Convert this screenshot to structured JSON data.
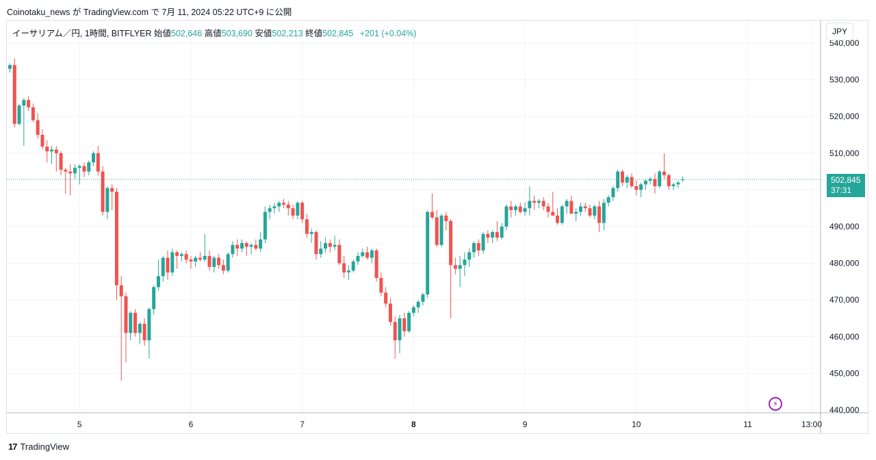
{
  "caption": "Coinotaku_news が TradingView.com で 7月 11, 2024 05:22 UTC+9 に公開",
  "legend": {
    "symbol": "イーサリアム／円, 1時間, BITFLYER",
    "open_label": "始値",
    "open": "502,646",
    "high_label": "高値",
    "high": "503,690",
    "low_label": "安値",
    "low": "502,213",
    "close_label": "終値",
    "close": "502,845",
    "change": "+201 (+0.04%)"
  },
  "currency_button": "JPY",
  "last_price": {
    "price": "502,845",
    "countdown": "37:31"
  },
  "footer": {
    "logo_mark": "17",
    "logo_text": "TradingView"
  },
  "colors": {
    "up": "#26a69a",
    "down": "#ef5350",
    "grid": "#f0f3fa",
    "axis_text": "#131722",
    "tag": "#26a69a",
    "bolt": "#9c27b0"
  },
  "chart_data": {
    "type": "candlestick",
    "ylim": [
      439000,
      544000
    ],
    "y_ticks": [
      440000,
      450000,
      460000,
      470000,
      480000,
      490000,
      500000,
      510000,
      520000,
      530000,
      540000
    ],
    "y_tick_labels": [
      "440,000",
      "450,000",
      "460,000",
      "470,000",
      "480,000",
      "490,000",
      "500,000",
      "510,000",
      "520,000",
      "530,000",
      "540,000"
    ],
    "x_tick_labels": [
      "5",
      "6",
      "7",
      "8",
      "9",
      "10",
      "11",
      "13:00"
    ],
    "x_tick_bold": [
      "8"
    ],
    "x_start_hour": 9,
    "last_price": 502845,
    "ohlc": [
      [
        533000,
        534500,
        532000,
        534000
      ],
      [
        534000,
        535800,
        517000,
        518000
      ],
      [
        518000,
        523500,
        517500,
        523000
      ],
      [
        523000,
        525000,
        512000,
        524500
      ],
      [
        524500,
        525500,
        521500,
        522500
      ],
      [
        522500,
        523500,
        518500,
        519000
      ],
      [
        519000,
        521000,
        514000,
        515000
      ],
      [
        515000,
        516500,
        511000,
        511800
      ],
      [
        511800,
        513500,
        507500,
        510500
      ],
      [
        510500,
        512000,
        507000,
        511000
      ],
      [
        511000,
        512000,
        505000,
        510000
      ],
      [
        510000,
        510500,
        504000,
        505500
      ],
      [
        505500,
        506000,
        499000,
        505000
      ],
      [
        505000,
        507000,
        498500,
        504500
      ],
      [
        504500,
        507000,
        503000,
        506000
      ],
      [
        506000,
        507000,
        501500,
        506500
      ],
      [
        506500,
        507500,
        503500,
        505000
      ],
      [
        505000,
        508000,
        504000,
        507500
      ],
      [
        507500,
        510500,
        506500,
        510000
      ],
      [
        510000,
        512000,
        504000,
        505000
      ],
      [
        505000,
        506500,
        493000,
        494000
      ],
      [
        494000,
        501000,
        492000,
        500500
      ],
      [
        500500,
        501500,
        494500,
        499500
      ],
      [
        499500,
        500500,
        470000,
        474000
      ],
      [
        474000,
        476500,
        448000,
        471000
      ],
      [
        471000,
        472000,
        453000,
        461000
      ],
      [
        461000,
        467000,
        459000,
        466500
      ],
      [
        466500,
        467500,
        460000,
        461000
      ],
      [
        461000,
        464000,
        458000,
        463500
      ],
      [
        463500,
        465000,
        457500,
        459000
      ],
      [
        459000,
        468000,
        454000,
        467500
      ],
      [
        467500,
        474000,
        466000,
        473500
      ],
      [
        473500,
        481000,
        472500,
        476500
      ],
      [
        476500,
        482000,
        475000,
        481500
      ],
      [
        481500,
        483500,
        475500,
        477500
      ],
      [
        477500,
        484000,
        476500,
        483000
      ],
      [
        483000,
        483500,
        478500,
        482000
      ],
      [
        482000,
        483000,
        480500,
        482500
      ],
      [
        482500,
        483500,
        480000,
        481000
      ],
      [
        481000,
        482000,
        478500,
        480500
      ],
      [
        480500,
        482000,
        479000,
        481500
      ],
      [
        481500,
        483000,
        480500,
        481000
      ],
      [
        481000,
        488000,
        480500,
        482000
      ],
      [
        482000,
        483500,
        478000,
        479000
      ],
      [
        479000,
        482000,
        477500,
        481500
      ],
      [
        481500,
        482500,
        478500,
        479500
      ],
      [
        479500,
        481000,
        477000,
        478000
      ],
      [
        478000,
        483000,
        477500,
        482500
      ],
      [
        482500,
        486000,
        481500,
        485000
      ],
      [
        485000,
        486500,
        482000,
        484000
      ],
      [
        484000,
        486500,
        483000,
        485500
      ],
      [
        485500,
        486000,
        482000,
        484500
      ],
      [
        484500,
        485500,
        482500,
        485000
      ],
      [
        485000,
        486500,
        483500,
        484000
      ],
      [
        484000,
        488500,
        483000,
        486500
      ],
      [
        486500,
        495500,
        485500,
        494000
      ],
      [
        494000,
        496000,
        492000,
        495000
      ],
      [
        495000,
        496500,
        493500,
        495500
      ],
      [
        495500,
        497000,
        494000,
        496500
      ],
      [
        496500,
        497500,
        495000,
        496000
      ],
      [
        496000,
        497000,
        493000,
        495000
      ],
      [
        495000,
        496000,
        492000,
        493000
      ],
      [
        493000,
        497000,
        492000,
        496500
      ],
      [
        496500,
        497000,
        491000,
        492000
      ],
      [
        492000,
        493500,
        487000,
        488000
      ],
      [
        488000,
        489500,
        485500,
        488500
      ],
      [
        488500,
        489000,
        481000,
        482500
      ],
      [
        482500,
        486000,
        481500,
        484000
      ],
      [
        484000,
        487000,
        483000,
        485500
      ],
      [
        485500,
        486500,
        483000,
        484500
      ],
      [
        484500,
        487500,
        483500,
        485000
      ],
      [
        485000,
        486500,
        479500,
        480000
      ],
      [
        480000,
        482000,
        476000,
        477500
      ],
      [
        477500,
        479500,
        475500,
        478000
      ],
      [
        478000,
        481000,
        477500,
        480500
      ],
      [
        480500,
        483000,
        479500,
        482000
      ],
      [
        482000,
        484000,
        481500,
        483000
      ],
      [
        483000,
        484500,
        481000,
        481500
      ],
      [
        481500,
        484000,
        480000,
        483500
      ],
      [
        483500,
        484000,
        475000,
        476000
      ],
      [
        476000,
        477500,
        471000,
        472000
      ],
      [
        472000,
        473500,
        468000,
        469000
      ],
      [
        469000,
        470500,
        463000,
        464000
      ],
      [
        464000,
        465500,
        454000,
        459000
      ],
      [
        459000,
        466000,
        455500,
        465000
      ],
      [
        465000,
        466500,
        460000,
        461500
      ],
      [
        461500,
        467000,
        461000,
        466500
      ],
      [
        466500,
        468500,
        465500,
        468000
      ],
      [
        468000,
        470000,
        466500,
        469500
      ],
      [
        469500,
        472000,
        468500,
        471500
      ],
      [
        471500,
        494500,
        470500,
        494000
      ],
      [
        494000,
        499000,
        492000,
        492500
      ],
      [
        492500,
        494500,
        484500,
        485000
      ],
      [
        485000,
        493500,
        484500,
        493000
      ],
      [
        493000,
        494000,
        489000,
        491500
      ],
      [
        491500,
        492000,
        465000,
        479500
      ],
      [
        479500,
        481500,
        477000,
        478500
      ],
      [
        478500,
        482000,
        473500,
        479500
      ],
      [
        479500,
        483000,
        476500,
        481000
      ],
      [
        481000,
        484000,
        479000,
        483000
      ],
      [
        483000,
        486000,
        481500,
        485500
      ],
      [
        485500,
        486500,
        482000,
        483500
      ],
      [
        483500,
        488500,
        482500,
        488000
      ],
      [
        488000,
        489000,
        485500,
        487000
      ],
      [
        487000,
        489000,
        485500,
        488500
      ],
      [
        488500,
        491500,
        486000,
        487000
      ],
      [
        487000,
        491000,
        486500,
        490000
      ],
      [
        490000,
        496000,
        489000,
        495500
      ],
      [
        495500,
        497000,
        492500,
        494500
      ],
      [
        494500,
        496000,
        493000,
        495500
      ],
      [
        495500,
        496500,
        493500,
        494000
      ],
      [
        494000,
        496500,
        493000,
        495000
      ],
      [
        495000,
        501000,
        493000,
        497000
      ],
      [
        497000,
        498500,
        494500,
        496500
      ],
      [
        496500,
        497500,
        495000,
        497000
      ],
      [
        497000,
        498000,
        494500,
        495500
      ],
      [
        495500,
        496500,
        492500,
        494000
      ],
      [
        494000,
        499500,
        493500,
        493000
      ],
      [
        493000,
        495000,
        490500,
        491000
      ],
      [
        491000,
        496000,
        490500,
        495500
      ],
      [
        495500,
        497500,
        493500,
        497000
      ],
      [
        497000,
        498500,
        494500,
        493500
      ],
      [
        493500,
        495000,
        491500,
        494000
      ],
      [
        494000,
        496500,
        493000,
        495500
      ],
      [
        495500,
        496500,
        494000,
        495000
      ],
      [
        495000,
        496000,
        492500,
        493000
      ],
      [
        493000,
        496000,
        492000,
        495500
      ],
      [
        495500,
        497000,
        488500,
        491000
      ],
      [
        491000,
        497500,
        489000,
        496500
      ],
      [
        496500,
        498500,
        495500,
        498000
      ],
      [
        498000,
        501000,
        497000,
        500500
      ],
      [
        500500,
        505500,
        499500,
        505000
      ],
      [
        505000,
        505500,
        501000,
        502000
      ],
      [
        502000,
        504000,
        500500,
        503500
      ],
      [
        503500,
        504500,
        500500,
        501000
      ],
      [
        501000,
        502500,
        498500,
        500000
      ],
      [
        500000,
        502000,
        498000,
        501500
      ],
      [
        501500,
        503000,
        500000,
        502500
      ],
      [
        502500,
        503500,
        501500,
        503000
      ],
      [
        503000,
        504500,
        499000,
        501000
      ],
      [
        501000,
        505500,
        500500,
        505000
      ],
      [
        505000,
        510000,
        503000,
        504000
      ],
      [
        504000,
        504500,
        500000,
        501000
      ],
      [
        501000,
        502000,
        500000,
        501500
      ],
      [
        501500,
        502500,
        500500,
        502000
      ],
      [
        502646,
        503690,
        502213,
        502845
      ]
    ]
  }
}
